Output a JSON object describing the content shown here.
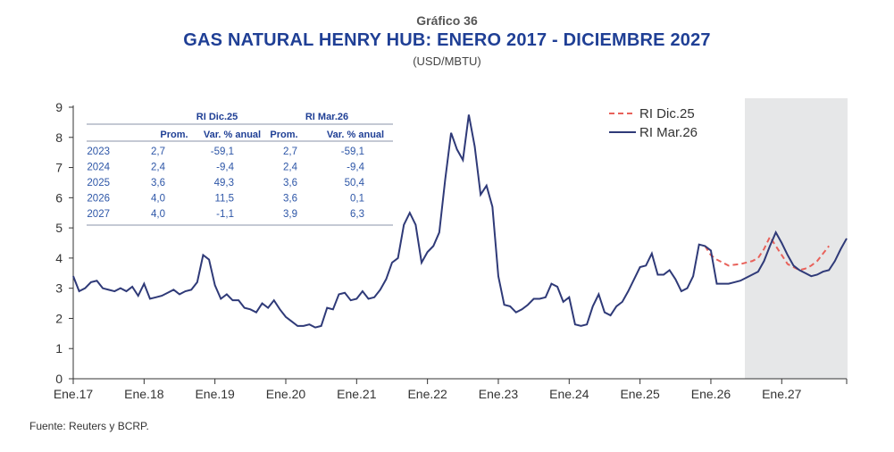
{
  "header": {
    "kicker": "Gráfico 36",
    "title": "GAS NATURAL HENRY HUB: ENERO 2017 - DICIEMBRE 2027",
    "units": "(USD/MBTU)"
  },
  "source": "Fuente: Reuters y BCRP.",
  "colors": {
    "dic25": "#e8615a",
    "mar26": "#2f3a78",
    "forecast_band": "#e6e7e8",
    "table_text": "#2d56a7",
    "table_header": "#1f3f95"
  },
  "inset_table": {
    "groups": [
      "RI Dic.25",
      "RI Mar.26"
    ],
    "columns": [
      "Prom.",
      "Var. % anual",
      "Prom.",
      "Var. % anual"
    ],
    "rows": [
      [
        "2023",
        "2,7",
        "-59,1",
        "2,7",
        "-59,1"
      ],
      [
        "2024",
        "2,4",
        "-9,4",
        "2,4",
        "-9,4"
      ],
      [
        "2025",
        "3,6",
        "49,3",
        "3,6",
        "50,4"
      ],
      [
        "2026",
        "4,0",
        "11,5",
        "3,6",
        "0,1"
      ],
      [
        "2027",
        "4,0",
        "-1,1",
        "3,9",
        "6,3"
      ]
    ]
  },
  "chart_data": {
    "type": "line",
    "title": "GAS NATURAL HENRY HUB: ENERO 2017 - DICIEMBRE 2027",
    "xlabel": "",
    "ylabel": "USD/MBTU",
    "ylim": [
      0,
      9
    ],
    "yticks": [
      "0",
      "1",
      "2",
      "3",
      "4",
      "5",
      "6",
      "7",
      "8",
      "9"
    ],
    "x_tick_labels": [
      "Ene.17",
      "Ene.18",
      "Ene.19",
      "Ene.20",
      "Ene.21",
      "Ene.22",
      "Ene.23",
      "Ene.24",
      "Ene.25",
      "Ene.26",
      "Ene.27"
    ],
    "x_start": "2017-01",
    "x_months": 132,
    "forecast_start_index": 113,
    "legend_position": "top-right",
    "series": [
      {
        "name": "RI Dic.25",
        "style": "dashed",
        "start_index": 107,
        "values": [
          4.4,
          4.1,
          3.95,
          3.85,
          3.75,
          3.78,
          3.8,
          3.85,
          3.9,
          4.0,
          4.3,
          4.7,
          4.4,
          4.1,
          3.8,
          3.7,
          3.6,
          3.65,
          3.75,
          3.9,
          4.15,
          4.4
        ]
      },
      {
        "name": "RI Mar.26",
        "style": "solid",
        "start_index": 0,
        "values": [
          3.4,
          2.9,
          3.0,
          3.2,
          3.25,
          3.0,
          2.95,
          2.9,
          3.0,
          2.9,
          3.05,
          2.75,
          3.15,
          2.65,
          2.7,
          2.75,
          2.85,
          2.95,
          2.8,
          2.9,
          2.95,
          3.2,
          4.1,
          3.95,
          3.1,
          2.65,
          2.8,
          2.6,
          2.6,
          2.35,
          2.3,
          2.2,
          2.5,
          2.35,
          2.6,
          2.3,
          2.05,
          1.9,
          1.75,
          1.75,
          1.8,
          1.7,
          1.75,
          2.35,
          2.3,
          2.8,
          2.85,
          2.6,
          2.65,
          2.9,
          2.65,
          2.7,
          2.95,
          3.3,
          3.85,
          4.0,
          5.1,
          5.5,
          5.1,
          3.85,
          4.2,
          4.4,
          4.85,
          6.6,
          8.15,
          7.6,
          7.25,
          8.75,
          7.7,
          6.1,
          6.4,
          5.7,
          3.4,
          2.45,
          2.4,
          2.2,
          2.3,
          2.45,
          2.65,
          2.65,
          2.7,
          3.15,
          3.05,
          2.55,
          2.7,
          1.8,
          1.75,
          1.8,
          2.4,
          2.8,
          2.2,
          2.1,
          2.4,
          2.55,
          2.9,
          3.3,
          3.7,
          3.75,
          4.15,
          3.45,
          3.45,
          3.6,
          3.3,
          2.9,
          3.0,
          3.4,
          4.45,
          4.4,
          4.25,
          3.15,
          3.15,
          3.15,
          3.2,
          3.25,
          3.35,
          3.45,
          3.55,
          3.9,
          4.4,
          4.85,
          4.5,
          4.1,
          3.75,
          3.6,
          3.5,
          3.4,
          3.45,
          3.55,
          3.6,
          3.9,
          4.3,
          4.65
        ]
      }
    ]
  }
}
